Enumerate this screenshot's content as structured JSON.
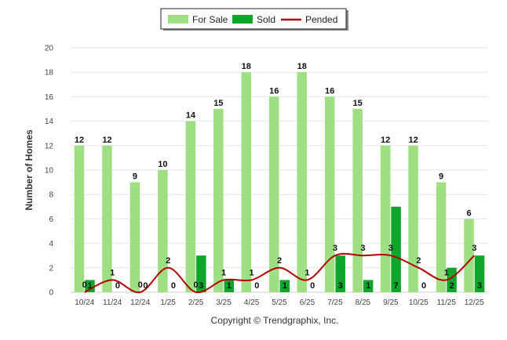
{
  "chart_data": {
    "type": "bar",
    "title": "",
    "xlabel": "",
    "ylabel": "Number of Homes",
    "ylim": [
      0,
      20
    ],
    "yticks": [
      0,
      2,
      4,
      6,
      8,
      10,
      12,
      14,
      16,
      18,
      20
    ],
    "grid": true,
    "legend_position": "top-center",
    "categories": [
      "10/24",
      "11/24",
      "12/24",
      "1/25",
      "2/25",
      "3/25",
      "4/25",
      "5/25",
      "6/25",
      "7/25",
      "8/25",
      "9/25",
      "10/25",
      "11/25",
      "12/25"
    ],
    "series": [
      {
        "name": "For Sale",
        "kind": "bar",
        "color": "#9fdf84",
        "values": [
          12,
          12,
          9,
          10,
          14,
          15,
          18,
          16,
          18,
          16,
          15,
          12,
          12,
          9,
          6
        ]
      },
      {
        "name": "Sold",
        "kind": "bar",
        "color": "#0da52a",
        "values": [
          1,
          0,
          0,
          0,
          3,
          1,
          0,
          1,
          0,
          3,
          1,
          7,
          0,
          2,
          3
        ]
      },
      {
        "name": "Pended",
        "kind": "line",
        "color": "#b30000",
        "values": [
          0,
          1,
          0,
          2,
          0,
          1,
          1,
          2,
          1,
          3,
          3,
          3,
          2,
          1,
          3
        ]
      }
    ]
  },
  "footer": {
    "copyright": "Copyright © Trendgraphix, Inc."
  }
}
